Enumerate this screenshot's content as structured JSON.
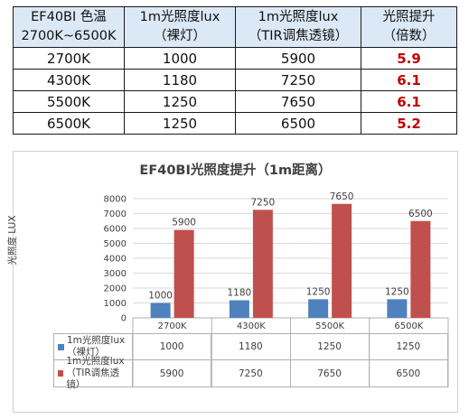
{
  "table": {
    "headers": [
      [
        "EF40BI 色温",
        "2700K~6500K"
      ],
      [
        "1m光照度lux",
        "（裸灯）"
      ],
      [
        "1m光照度lux",
        "（TIR调焦透镜）"
      ],
      [
        "光照提升",
        "（倍数）"
      ]
    ],
    "rows": [
      [
        "2700K",
        "1000",
        "5900",
        "5.9"
      ],
      [
        "4300K",
        "1180",
        "7250",
        "6.1"
      ],
      [
        "5500K",
        "1250",
        "7650",
        "6.1"
      ],
      [
        "6500K",
        "1250",
        "6500",
        "5.2"
      ]
    ],
    "ratio_color": "#c00000",
    "header_bg": "#dbe8f5"
  },
  "chart_data": {
    "type": "bar",
    "title": "EF40BI光照度提升（1m距离）",
    "ylabel": "光照度 LUX",
    "xlabel": "",
    "categories": [
      "2700K",
      "4300K",
      "5500K",
      "6500K"
    ],
    "ylim": [
      0,
      8000
    ],
    "yticks": [
      "0",
      "1000",
      "2000",
      "3000",
      "4000",
      "5000",
      "6000",
      "7000",
      "8000"
    ],
    "grid": true,
    "legend": "data-table",
    "series": [
      {
        "name": "1m光照度lux（裸灯）",
        "legend_lines": [
          "1m光照度lux",
          "（裸灯）"
        ],
        "color": "#4f81bd",
        "values": [
          1000,
          1180,
          1250,
          1250
        ]
      },
      {
        "name": "1m光照度lux（TIR调焦透镜）",
        "legend_lines": [
          "1m光照度lux",
          "（TIR调焦透镜）"
        ],
        "color": "#c0504d",
        "values": [
          5900,
          7250,
          7650,
          6500
        ]
      }
    ]
  }
}
